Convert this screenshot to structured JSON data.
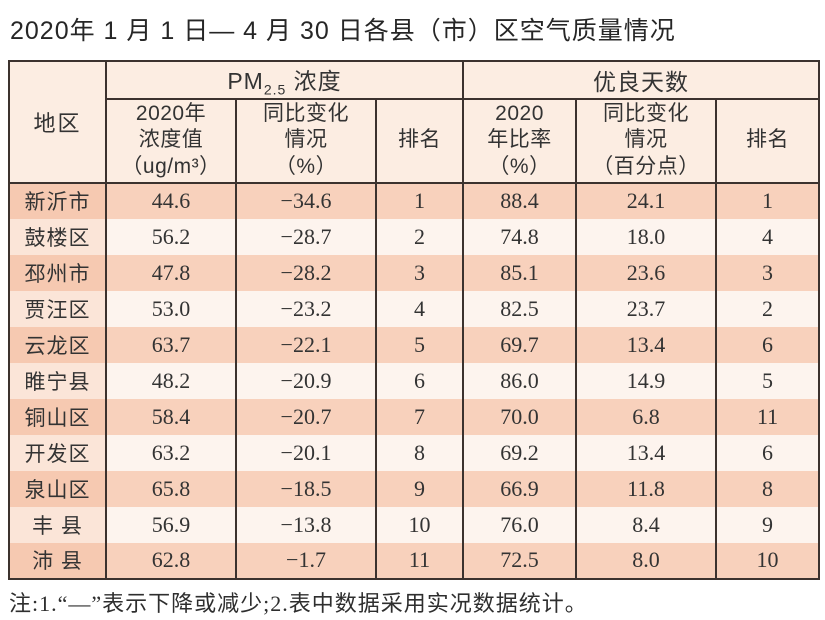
{
  "title": "2020年 1 月 1 日— 4 月 30 日各县（市）区空气质量情况",
  "note": "注:1.“—”表示下降或减少;2.表中数据采用实况数据统计。",
  "colors": {
    "border": "#3c322e",
    "header_bg": "#fcede2",
    "row_odd": "#f8d1bc",
    "row_odd_region": "#f6c9b1",
    "row_even": "#fdf4ee",
    "row_even_region": "#fbe5d8",
    "text": "#333333",
    "title_color": "#262626"
  },
  "table": {
    "corner_header": "地区",
    "group_pm25": {
      "base": "PM",
      "sub": "2.5",
      "tail": " 浓度"
    },
    "group_days": "优良天数",
    "sub_headers": [
      "2020年\n浓度值\n（ug/m³）",
      "同比变化\n情况\n（%）",
      "排名",
      "2020\n年比率\n（%）",
      "同比变化\n情况\n（百分点）",
      "排名"
    ],
    "column_semantics": [
      "region",
      "pm25-2020-concentration-ug-m3",
      "pm25-yoy-change-percent",
      "pm25-rank",
      "good-days-2020-ratio-percent",
      "good-days-yoy-change-points",
      "good-days-rank"
    ],
    "rows": [
      [
        "新沂市",
        "44.6",
        "−34.6",
        "1",
        "88.4",
        "24.1",
        "1"
      ],
      [
        "鼓楼区",
        "56.2",
        "−28.7",
        "2",
        "74.8",
        "18.0",
        "4"
      ],
      [
        "邳州市",
        "47.8",
        "−28.2",
        "3",
        "85.1",
        "23.6",
        "3"
      ],
      [
        "贾汪区",
        "53.0",
        "−23.2",
        "4",
        "82.5",
        "23.7",
        "2"
      ],
      [
        "云龙区",
        "63.7",
        "−22.1",
        "5",
        "69.7",
        "13.4",
        "6"
      ],
      [
        "睢宁县",
        "48.2",
        "−20.9",
        "6",
        "86.0",
        "14.9",
        "5"
      ],
      [
        "铜山区",
        "58.4",
        "−20.7",
        "7",
        "70.0",
        "6.8",
        "11"
      ],
      [
        "开发区",
        "63.2",
        "−20.1",
        "8",
        "69.2",
        "13.4",
        "6"
      ],
      [
        "泉山区",
        "65.8",
        "−18.5",
        "9",
        "66.9",
        "11.8",
        "8"
      ],
      [
        "丰 县",
        "56.9",
        "−13.8",
        "10",
        "76.0",
        "8.4",
        "9"
      ],
      [
        "沛 县",
        "62.8",
        "−1.7",
        "11",
        "72.5",
        "8.0",
        "10"
      ]
    ]
  }
}
